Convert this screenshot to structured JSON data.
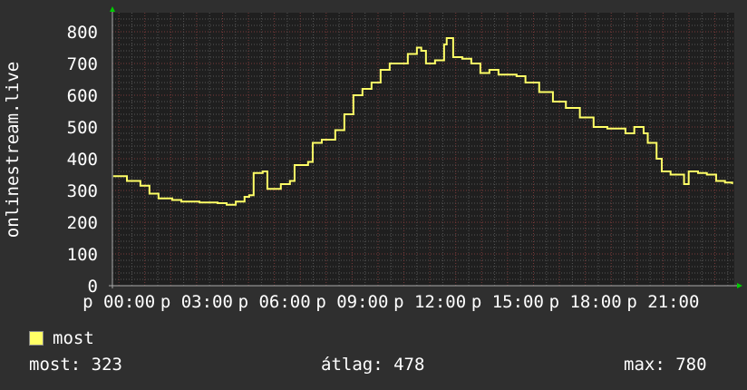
{
  "chart_data": {
    "type": "line",
    "title": "",
    "ylabel": "onlinestream.live",
    "xlabel": "",
    "xlim": [
      -0.25,
      23.75
    ],
    "ylim": [
      0,
      800
    ],
    "grid": true,
    "y_ticks": [
      "0",
      "100",
      "200",
      "300",
      "400",
      "500",
      "600",
      "700",
      "800"
    ],
    "x_tick_labels": [
      "p 00:00",
      "p 03:00",
      "p 06:00",
      "p 09:00",
      "p 12:00",
      "p 15:00",
      "p 18:00",
      "p 21:00"
    ],
    "series": [
      {
        "name": "most",
        "color": "#ffff66",
        "x": [
          -0.22,
          0.31,
          0.83,
          1.18,
          1.53,
          2.06,
          2.41,
          3.11,
          3.81,
          4.16,
          4.51,
          4.85,
          5.03,
          5.2,
          5.55,
          5.73,
          6.25,
          6.6,
          6.78,
          7.3,
          7.48,
          7.83,
          8.35,
          8.7,
          9.05,
          9.4,
          9.75,
          10.1,
          10.45,
          10.8,
          11.15,
          11.5,
          11.67,
          11.85,
          12.2,
          12.55,
          12.65,
          12.9,
          13.25,
          13.6,
          13.95,
          14.3,
          14.65,
          15.35,
          15.69,
          16.22,
          16.75,
          17.25,
          17.79,
          18.32,
          18.85,
          19.55,
          19.89,
          20.25,
          20.41,
          20.75,
          20.95,
          21.29,
          21.81,
          21.99,
          22.35,
          22.69,
          23.05,
          23.39,
          23.67
        ],
        "y": [
          345,
          330,
          315,
          290,
          275,
          270,
          265,
          262,
          260,
          255,
          265,
          280,
          285,
          355,
          360,
          305,
          320,
          330,
          380,
          390,
          450,
          460,
          490,
          540,
          600,
          620,
          640,
          680,
          700,
          700,
          730,
          750,
          740,
          700,
          710,
          760,
          780,
          720,
          715,
          700,
          670,
          680,
          665,
          660,
          640,
          610,
          580,
          560,
          530,
          500,
          495,
          480,
          500,
          480,
          450,
          400,
          360,
          350,
          320,
          360,
          355,
          350,
          330,
          325,
          323
        ]
      }
    ],
    "legend": {
      "position": "bottom-left",
      "entries": [
        "most"
      ]
    },
    "stats": {
      "current": "most: 323",
      "average": "átlag: 478",
      "max": "max: 780"
    }
  }
}
